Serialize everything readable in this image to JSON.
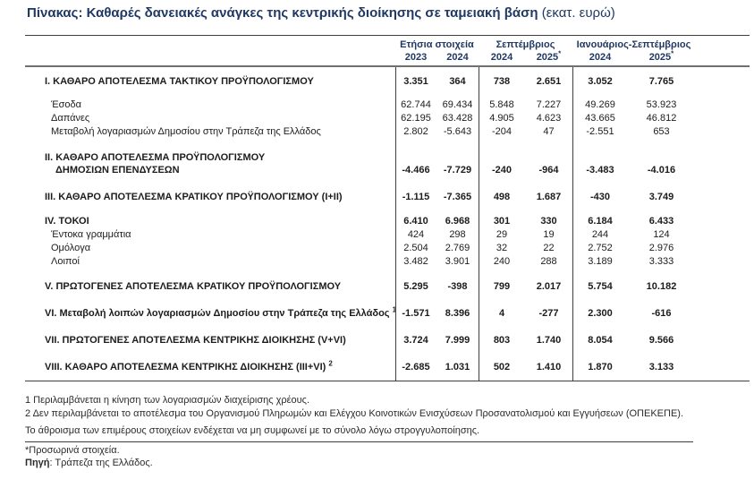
{
  "title": {
    "main": "Πίνακας: Καθαρές δανειακές ανάγκες της κεντρικής διοίκησης σε ταμειακή βάση",
    "unit": "(εκατ. ευρώ)"
  },
  "accent_color": "#1f3864",
  "header": {
    "groups": [
      {
        "label": "Ετήσια στοιχεία"
      },
      {
        "label": "Σεπτέμβριος"
      },
      {
        "label": "Ιανουάριος-Σεπτέμβριος"
      }
    ],
    "years": [
      {
        "y": "2023",
        "sup": ""
      },
      {
        "y": "2024",
        "sup": ""
      },
      {
        "y": "2024",
        "sup": ""
      },
      {
        "y": "2025",
        "sup": "*"
      },
      {
        "y": "2024",
        "sup": ""
      },
      {
        "y": "2025",
        "sup": "*"
      }
    ]
  },
  "rows": [
    {
      "label": "Ι. ΚΑΘΑΡΟ ΑΠΟΤΕΛΕΣΜΑ ΤΑΚΤΙΚΟΥ ΠΡΟΫΠΟΛΟΓΙΣΜΟΥ",
      "values": [
        "3.351",
        "364",
        "738",
        "2.651",
        "3.052",
        "7.765"
      ]
    },
    {
      "label": "Έσοδα",
      "values": [
        "62.744",
        "69.434",
        "5.848",
        "7.227",
        "49.269",
        "53.923"
      ]
    },
    {
      "label": "Δαπάνες",
      "values": [
        "62.195",
        "63.428",
        "4.905",
        "4.623",
        "43.665",
        "46.812"
      ]
    },
    {
      "label": "Μεταβολή λογαριασμών Δημοσίου στην Τράπεζα της Ελλάδος",
      "values": [
        "2.802",
        "-5.643",
        "-204",
        "47",
        "-2.551",
        "653"
      ]
    },
    {
      "label": "ΙΙ. ΚΑΘΑΡΟ ΑΠΟΤΕΛΕΣΜΑ ΠΡΟΫΠΟΛΟΓΙΣΜΟΥ",
      "label2": "ΔΗΜΟΣΙΩΝ ΕΠΕΝΔΥΣΕΩΝ",
      "values": [
        "-4.466",
        "-7.729",
        "-240",
        "-964",
        "-3.483",
        "-4.016"
      ]
    },
    {
      "label": "ΙΙΙ. ΚΑΘΑΡΟ ΑΠΟΤΕΛΕΣΜΑ ΚΡΑΤΙΚΟΥ ΠΡΟΫΠΟΛΟΓΙΣΜΟΥ (Ι+ΙΙ)",
      "values": [
        "-1.115",
        "-7.365",
        "498",
        "1.687",
        "-430",
        "3.749"
      ]
    },
    {
      "label": "ΙV. ΤΟΚΟΙ",
      "values": [
        "6.410",
        "6.968",
        "301",
        "330",
        "6.184",
        "6.433"
      ]
    },
    {
      "label": "Έντοκα γραμμάτια",
      "values": [
        "424",
        "298",
        "29",
        "19",
        "244",
        "124"
      ]
    },
    {
      "label": "Ομόλογα",
      "values": [
        "2.504",
        "2.769",
        "32",
        "22",
        "2.752",
        "2.976"
      ]
    },
    {
      "label": "Λοιποί",
      "values": [
        "3.482",
        "3.901",
        "240",
        "288",
        "3.189",
        "3.333"
      ]
    },
    {
      "label": "V. ΠΡΩΤΟΓΕΝΕΣ ΑΠΟΤΕΛΕΣΜΑ ΚΡΑΤΙΚΟΥ ΠΡΟΫΠΟΛΟΓΙΣΜΟΥ",
      "values": [
        "5.295",
        "-398",
        "799",
        "2.017",
        "5.754",
        "10.182"
      ]
    },
    {
      "label": "VΙ. Μεταβολή λοιπών λογαριασμών Δημοσίου στην Τράπεζα της Ελλάδος",
      "sup": "1",
      "values": [
        "-1.571",
        "8.396",
        "4",
        "-277",
        "2.300",
        "-616"
      ]
    },
    {
      "label": "VΙΙ. ΠΡΩΤΟΓΕΝΕΣ ΑΠΟΤΕΛΕΣΜΑ ΚΕΝΤΡΙΚΗΣ ΔΙΟΙΚΗΣΗΣ (V+VΙ)",
      "values": [
        "3.724",
        "7.999",
        "803",
        "1.740",
        "8.054",
        "9.566"
      ]
    },
    {
      "label": "VΙΙΙ. ΚΑΘΑΡΟ ΑΠΟΤΕΛΕΣΜΑ ΚΕΝΤΡΙΚΗΣ ΔΙΟΙΚΗΣΗΣ (ΙΙΙ+VΙ)",
      "sup": "2",
      "values": [
        "-2.685",
        "1.031",
        "502",
        "1.410",
        "1.870",
        "3.133"
      ]
    }
  ],
  "footnotes": {
    "fn1": "1 Περιλαμβάνεται η κίνηση των λογαριασμών διαχείρισης χρέους.",
    "fn2": "2 Δεν περιλαμβάνεται το αποτέλεσμα του Οργανισμού Πληρωμών και Ελέγχου Κοινοτικών Ενισχύσεων Προσανατολισμού και Εγγυήσεων (ΟΠΕΚΕΠΕ).",
    "rounding": "Το άθροισμα των επιμέρους στοιχείων ενδέχεται να μη συμφωνεί με το σύνολο λόγω στρογγυλοποίησης.",
    "provisional": "*Προσωρινά στοιχεία.",
    "source_label": "Πηγή",
    "source_text": ": Τράπεζα της Ελλάδος."
  }
}
